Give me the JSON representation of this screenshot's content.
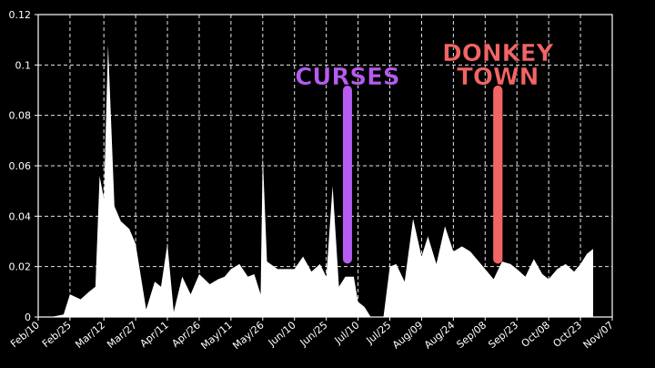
{
  "chart_data": {
    "type": "area",
    "title": "",
    "xlabel": "",
    "ylabel": "",
    "ylim": [
      0,
      0.12
    ],
    "y_ticks": [
      {
        "value": 0,
        "label": "0"
      },
      {
        "value": 0.02,
        "label": "0.02"
      },
      {
        "value": 0.04,
        "label": "0.04"
      },
      {
        "value": 0.06,
        "label": "0.06"
      },
      {
        "value": 0.08,
        "label": "0.08"
      },
      {
        "value": 0.1,
        "label": "0.1"
      },
      {
        "value": 0.12,
        "label": "0.12"
      }
    ],
    "x_ticks": [
      "Feb/10",
      "Feb/25",
      "Mar/12",
      "Mar/27",
      "Apr/11",
      "Apr/26",
      "May/11",
      "May/26",
      "Jun/10",
      "Jun/25",
      "Jul/10",
      "Jul/25",
      "Aug/09",
      "Aug/24",
      "Sep/08",
      "Sep/23",
      "Oct/08",
      "Oct/23",
      "Nov/07"
    ],
    "grid": true,
    "background_color": "#000000",
    "fill_color": "#ffffff",
    "series": [
      {
        "x": [
          "Feb/10",
          "Feb/16",
          "Feb/22",
          "Feb/25",
          "Mar/01",
          "Mar/05",
          "Mar/08",
          "Mar/10",
          "Mar/12",
          "Mar/14",
          "Mar/17",
          "Mar/20",
          "Mar/24",
          "Mar/27",
          "Apr/01",
          "Apr/05",
          "Apr/08",
          "Apr/11",
          "Apr/14",
          "Apr/18",
          "Apr/22",
          "Apr/26",
          "May/01",
          "May/05",
          "May/08",
          "May/11",
          "May/15",
          "May/19",
          "May/22",
          "May/25",
          "May/26",
          "May/28",
          "Jun/02",
          "Jun/06",
          "Jun/10",
          "Jun/14",
          "Jun/18",
          "Jun/22",
          "Jun/25",
          "Jun/28",
          "Jul/01",
          "Jul/04",
          "Jul/08",
          "Jul/10",
          "Jul/13",
          "Jul/16",
          "Jul/19",
          "Jul/22",
          "Jul/25",
          "Jul/28",
          "Aug/01",
          "Aug/05",
          "Aug/09",
          "Aug/12",
          "Aug/16",
          "Aug/20",
          "Aug/24",
          "Aug/28",
          "Sep/01",
          "Sep/05",
          "Sep/08",
          "Sep/12",
          "Sep/16",
          "Sep/20",
          "Sep/23",
          "Sep/27",
          "Oct/01",
          "Oct/05",
          "Oct/08",
          "Oct/12",
          "Oct/16",
          "Oct/20",
          "Oct/23",
          "Oct/26",
          "Oct/29"
        ],
        "values": [
          0,
          0,
          0.001,
          0.009,
          0.007,
          0.01,
          0.012,
          0.056,
          0.047,
          0.108,
          0.044,
          0.038,
          0.035,
          0.029,
          0.003,
          0.014,
          0.012,
          0.029,
          0.002,
          0.016,
          0.009,
          0.017,
          0.013,
          0.015,
          0.016,
          0.019,
          0.021,
          0.016,
          0.017,
          0.009,
          0.064,
          0.022,
          0.019,
          0.019,
          0.019,
          0.024,
          0.018,
          0.021,
          0.016,
          0.052,
          0.012,
          0.016,
          0.016,
          0.006,
          0.004,
          0,
          0,
          0,
          0.02,
          0.021,
          0.014,
          0.039,
          0.024,
          0.032,
          0.021,
          0.036,
          0.026,
          0.028,
          0.026,
          0.022,
          0.019,
          0.015,
          0.022,
          0.021,
          0.019,
          0.016,
          0.023,
          0.017,
          0.015,
          0.019,
          0.021,
          0.018,
          0.021,
          0.025,
          0.027
        ]
      }
    ],
    "annotations": [
      {
        "text": "CURSES",
        "x": "Jul/05",
        "y_top": 0.09,
        "y_bottom": 0.023,
        "color": "#b65cf2"
      },
      {
        "text": "DONKEY",
        "x": "Sep/14",
        "y_top": 0.09,
        "y_bottom": 0.023,
        "color": "#f26565"
      },
      {
        "text": "TOWN",
        "x": "Sep/14",
        "y_top": 0.09,
        "y_bottom": 0.023,
        "color": "#f26565"
      }
    ]
  }
}
